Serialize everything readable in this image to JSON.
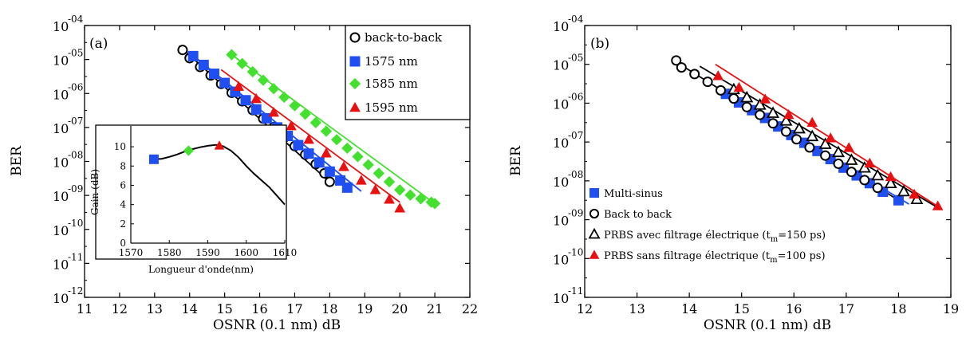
{
  "colors": {
    "back_to_back": "#000000",
    "nm1575": "#1f4ff0",
    "nm1585": "#44e030",
    "nm1595": "#e81010",
    "multisinus": "#1f4ff0",
    "prbs_sans": "#e81010"
  },
  "chart_data": [
    {
      "type": "scatter",
      "panel_label": "(a)",
      "xlabel": "OSNR (0.1 nm) dB",
      "ylabel": "BER",
      "xlim": [
        11,
        22
      ],
      "ylim_exponent": [
        -12,
        -4
      ],
      "y_scale": "log",
      "x_ticks": [
        "11",
        "12",
        "13",
        "14",
        "15",
        "16",
        "17",
        "18",
        "19",
        "20",
        "21",
        "22"
      ],
      "y_ticks": [
        {
          "base": "10",
          "exp": "-04",
          "e": -4
        },
        {
          "base": "10",
          "exp": "-05",
          "e": -5
        },
        {
          "base": "10",
          "exp": "-06",
          "e": -6
        },
        {
          "base": "10",
          "exp": "-07",
          "e": -7
        },
        {
          "base": "10",
          "exp": "-08",
          "e": -8
        },
        {
          "base": "10",
          "exp": "-09",
          "e": -9
        },
        {
          "base": "10",
          "exp": "-10",
          "e": -10
        },
        {
          "base": "10",
          "exp": "-11",
          "e": -11
        },
        {
          "base": "10",
          "exp": "-12",
          "e": -12
        }
      ],
      "legend_position": "top-right",
      "series": [
        {
          "name": "back-to-back",
          "marker": "circle",
          "color_key": "back_to_back",
          "x": [
            13.8,
            14.0,
            14.3,
            14.6,
            14.9,
            15.2,
            15.5,
            15.8,
            16.1,
            16.4,
            16.7,
            17.0,
            17.3,
            17.6,
            17.85,
            18.0
          ],
          "y": [
            -4.72,
            -4.96,
            -5.22,
            -5.47,
            -5.72,
            -5.98,
            -6.23,
            -6.49,
            -6.74,
            -6.99,
            -7.3,
            -7.55,
            -7.8,
            -8.08,
            -8.35,
            -8.6
          ],
          "line_x": [
            13.7,
            18.1
          ],
          "line_y": [
            -4.6,
            -8.7
          ]
        },
        {
          "name": "1575 nm",
          "marker": "square",
          "color_key": "nm1575",
          "x": [
            14.1,
            14.4,
            14.7,
            15.0,
            15.3,
            15.6,
            15.9,
            16.2,
            16.5,
            16.8,
            17.1,
            17.4,
            17.7,
            18.0,
            18.3,
            18.5
          ],
          "y": [
            -4.9,
            -5.16,
            -5.42,
            -5.69,
            -5.95,
            -6.2,
            -6.47,
            -6.73,
            -7.0,
            -7.25,
            -7.52,
            -7.77,
            -8.03,
            -8.3,
            -8.56,
            -8.77
          ],
          "line_x": [
            14.0,
            18.9
          ],
          "line_y": [
            -4.8,
            -8.88
          ]
        },
        {
          "name": "1585 nm",
          "marker": "diamond",
          "color_key": "nm1585",
          "x": [
            15.2,
            15.5,
            15.8,
            16.1,
            16.4,
            16.7,
            17.0,
            17.3,
            17.6,
            17.9,
            18.2,
            18.5,
            18.8,
            19.1,
            19.4,
            19.7,
            20.0,
            20.3,
            20.6,
            20.9,
            21.0
          ],
          "y": [
            -4.86,
            -5.12,
            -5.36,
            -5.61,
            -5.86,
            -6.11,
            -6.36,
            -6.61,
            -6.86,
            -7.11,
            -7.36,
            -7.61,
            -7.86,
            -8.1,
            -8.35,
            -8.6,
            -8.84,
            -8.99,
            -9.1,
            -9.2,
            -9.24
          ],
          "line_x": [
            15.2,
            21.0
          ],
          "line_y": [
            -4.86,
            -9.24
          ]
        },
        {
          "name": "1595 nm",
          "marker": "triangle",
          "color_key": "nm1595",
          "x": [
            15.4,
            15.9,
            16.4,
            16.9,
            17.4,
            17.9,
            18.4,
            18.9,
            19.3,
            19.7,
            20.0
          ],
          "y": [
            -5.8,
            -6.16,
            -6.56,
            -6.96,
            -7.36,
            -7.76,
            -8.16,
            -8.56,
            -8.84,
            -9.12,
            -9.38
          ],
          "line_x": [
            14.9,
            20.0
          ],
          "line_y": [
            -5.3,
            -9.2
          ]
        }
      ],
      "inset": {
        "xlabel": "Longueur d'onde(nm)",
        "ylabel": "Gain (dB)",
        "xlim": [
          1570,
          1610
        ],
        "ylim": [
          0,
          11
        ],
        "x_ticks": [
          "1570",
          "1580",
          "1590",
          "1600",
          "1610"
        ],
        "y_ticks": [
          "0",
          "2",
          "4",
          "6",
          "8",
          "10"
        ],
        "curve_x": [
          1576,
          1578,
          1580,
          1582,
          1584,
          1586,
          1588,
          1590,
          1592,
          1594,
          1596,
          1598,
          1600,
          1602,
          1604,
          1606,
          1608,
          1610
        ],
        "curve_y": [
          8.7,
          8.75,
          8.95,
          9.2,
          9.5,
          9.75,
          9.95,
          10.1,
          10.2,
          10.05,
          9.6,
          8.9,
          8.0,
          7.2,
          6.5,
          5.8,
          4.9,
          4.0
        ],
        "points": [
          {
            "x": 1576,
            "y": 8.7,
            "marker": "square",
            "color_key": "nm1575"
          },
          {
            "x": 1585,
            "y": 9.6,
            "marker": "diamond",
            "color_key": "nm1585"
          },
          {
            "x": 1593,
            "y": 10.1,
            "marker": "triangle",
            "color_key": "nm1595"
          }
        ]
      }
    },
    {
      "type": "scatter",
      "panel_label": "(b)",
      "xlabel": "OSNR (0.1 nm) dB",
      "ylabel": "BER",
      "xlim": [
        12,
        19
      ],
      "ylim_exponent": [
        -11,
        -4
      ],
      "y_scale": "log",
      "x_ticks": [
        "12",
        "13",
        "14",
        "15",
        "16",
        "17",
        "18",
        "19"
      ],
      "y_ticks": [
        {
          "base": "10",
          "exp": "-04",
          "e": -4
        },
        {
          "base": "10",
          "exp": "-05",
          "e": -5
        },
        {
          "base": "10",
          "exp": "-06",
          "e": -6
        },
        {
          "base": "10",
          "exp": "-07",
          "e": -7
        },
        {
          "base": "10",
          "exp": "-08",
          "e": -8
        },
        {
          "base": "10",
          "exp": "-09",
          "e": -9
        },
        {
          "base": "10",
          "exp": "-10",
          "e": -10
        },
        {
          "base": "10",
          "exp": "-11",
          "e": -11
        }
      ],
      "legend_position": "bottom-left",
      "series": [
        {
          "name": "Multi-sinus",
          "marker": "square",
          "color_key": "multisinus",
          "x": [
            14.7,
            14.95,
            15.2,
            15.45,
            15.7,
            15.95,
            16.2,
            16.45,
            16.7,
            16.95,
            17.2,
            17.45,
            17.7,
            18.0
          ],
          "y": [
            -5.76,
            -5.98,
            -6.18,
            -6.38,
            -6.6,
            -6.82,
            -7.02,
            -7.23,
            -7.44,
            -7.66,
            -7.86,
            -8.06,
            -8.28,
            -8.5
          ],
          "line_x": [
            14.6,
            18.2
          ],
          "line_y": [
            -5.7,
            -8.6
          ]
        },
        {
          "name": "Back to back",
          "marker": "circle",
          "color_key": "back_to_back",
          "x": [
            13.75,
            13.85,
            14.1,
            14.35,
            14.6,
            14.85,
            15.1,
            15.35,
            15.6,
            15.85,
            16.05,
            16.3,
            16.6,
            16.85,
            17.1,
            17.35,
            17.6
          ],
          "y": [
            -4.9,
            -5.08,
            -5.25,
            -5.45,
            -5.67,
            -5.88,
            -6.1,
            -6.3,
            -6.52,
            -6.73,
            -6.93,
            -7.14,
            -7.35,
            -7.56,
            -7.77,
            -7.98,
            -8.18
          ],
          "line_x": [
            13.7,
            18.0
          ],
          "line_y": [
            -4.9,
            -8.5
          ]
        },
        {
          "name": "PRBS avec filtrage électrique (t_m=150 ps)",
          "marker": "triangle-open",
          "color_key": "back_to_back",
          "x": [
            14.85,
            15.1,
            15.35,
            15.6,
            15.85,
            16.1,
            16.35,
            16.6,
            16.85,
            17.1,
            17.35,
            17.6,
            17.85,
            18.1,
            18.35
          ],
          "y": [
            -5.65,
            -5.86,
            -6.05,
            -6.26,
            -6.46,
            -6.66,
            -6.86,
            -7.06,
            -7.27,
            -7.47,
            -7.67,
            -7.87,
            -8.07,
            -8.28,
            -8.48
          ],
          "line_x": [
            14.2,
            18.7
          ],
          "line_y": [
            -5.05,
            -8.65
          ]
        },
        {
          "name": "PRBS sans filtrage électrique (t_m=100 ps)",
          "marker": "triangle",
          "color_key": "prbs_sans",
          "x": [
            14.55,
            14.95,
            15.45,
            15.9,
            16.35,
            16.7,
            17.05,
            17.45,
            17.85,
            18.3,
            18.75
          ],
          "y": [
            -5.3,
            -5.6,
            -5.9,
            -6.3,
            -6.5,
            -6.9,
            -7.15,
            -7.55,
            -7.9,
            -8.35,
            -8.65
          ],
          "line_x": [
            14.5,
            18.8
          ],
          "line_y": [
            -5.0,
            -8.7
          ]
        }
      ]
    }
  ]
}
